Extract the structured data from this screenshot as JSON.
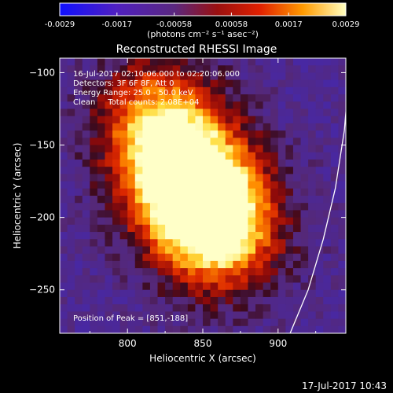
{
  "chart_data": {
    "type": "heatmap",
    "title": "Reconstructed RHESSI Image",
    "xlabel": "Heliocentric X (arcsec)",
    "ylabel": "Heliocentric Y (arcsec)",
    "xlim": [
      755,
      945
    ],
    "ylim": [
      -280,
      -90
    ],
    "x_ticks": [
      800,
      850,
      900
    ],
    "y_ticks": [
      -100,
      -150,
      -200,
      -250
    ],
    "colorbar": {
      "ticks": [
        "-0.0029",
        "-0.0017",
        "-0.00058",
        "0.00058",
        "0.0017",
        "0.0029"
      ],
      "range": [
        -0.0029,
        0.0029
      ],
      "label": "(photons cm⁻² s⁻¹ asec⁻²)"
    },
    "annotations": [
      "16-Jul-2017 02:10:06.000 to 02:20:06.000",
      "Detectors: 3F 6F 8F, Att 0",
      "Energy Range: 25.0 - 50.0 keV",
      "Clean     Total counts: 2.08E+04"
    ],
    "peak_label": "Position of Peak = [851,-188]",
    "peak": [
      851,
      -188
    ],
    "sources": [
      {
        "x": 832,
        "y": -172,
        "peak": 0.0029
      },
      {
        "x": 851,
        "y": -188,
        "peak": 0.0029
      },
      {
        "x": 861,
        "y": -210,
        "peak": 0.0025
      },
      {
        "x": 826,
        "y": -140,
        "peak": 0.0017
      },
      {
        "x": 812,
        "y": -125,
        "peak": 0.0015
      }
    ],
    "limb_curve": [
      [
        908,
        -280
      ],
      [
        920,
        -250
      ],
      [
        930,
        -215
      ],
      [
        938,
        -180
      ],
      [
        944,
        -140
      ],
      [
        948,
        -90
      ]
    ]
  },
  "footer_date": "17-Jul-2017 10:43"
}
